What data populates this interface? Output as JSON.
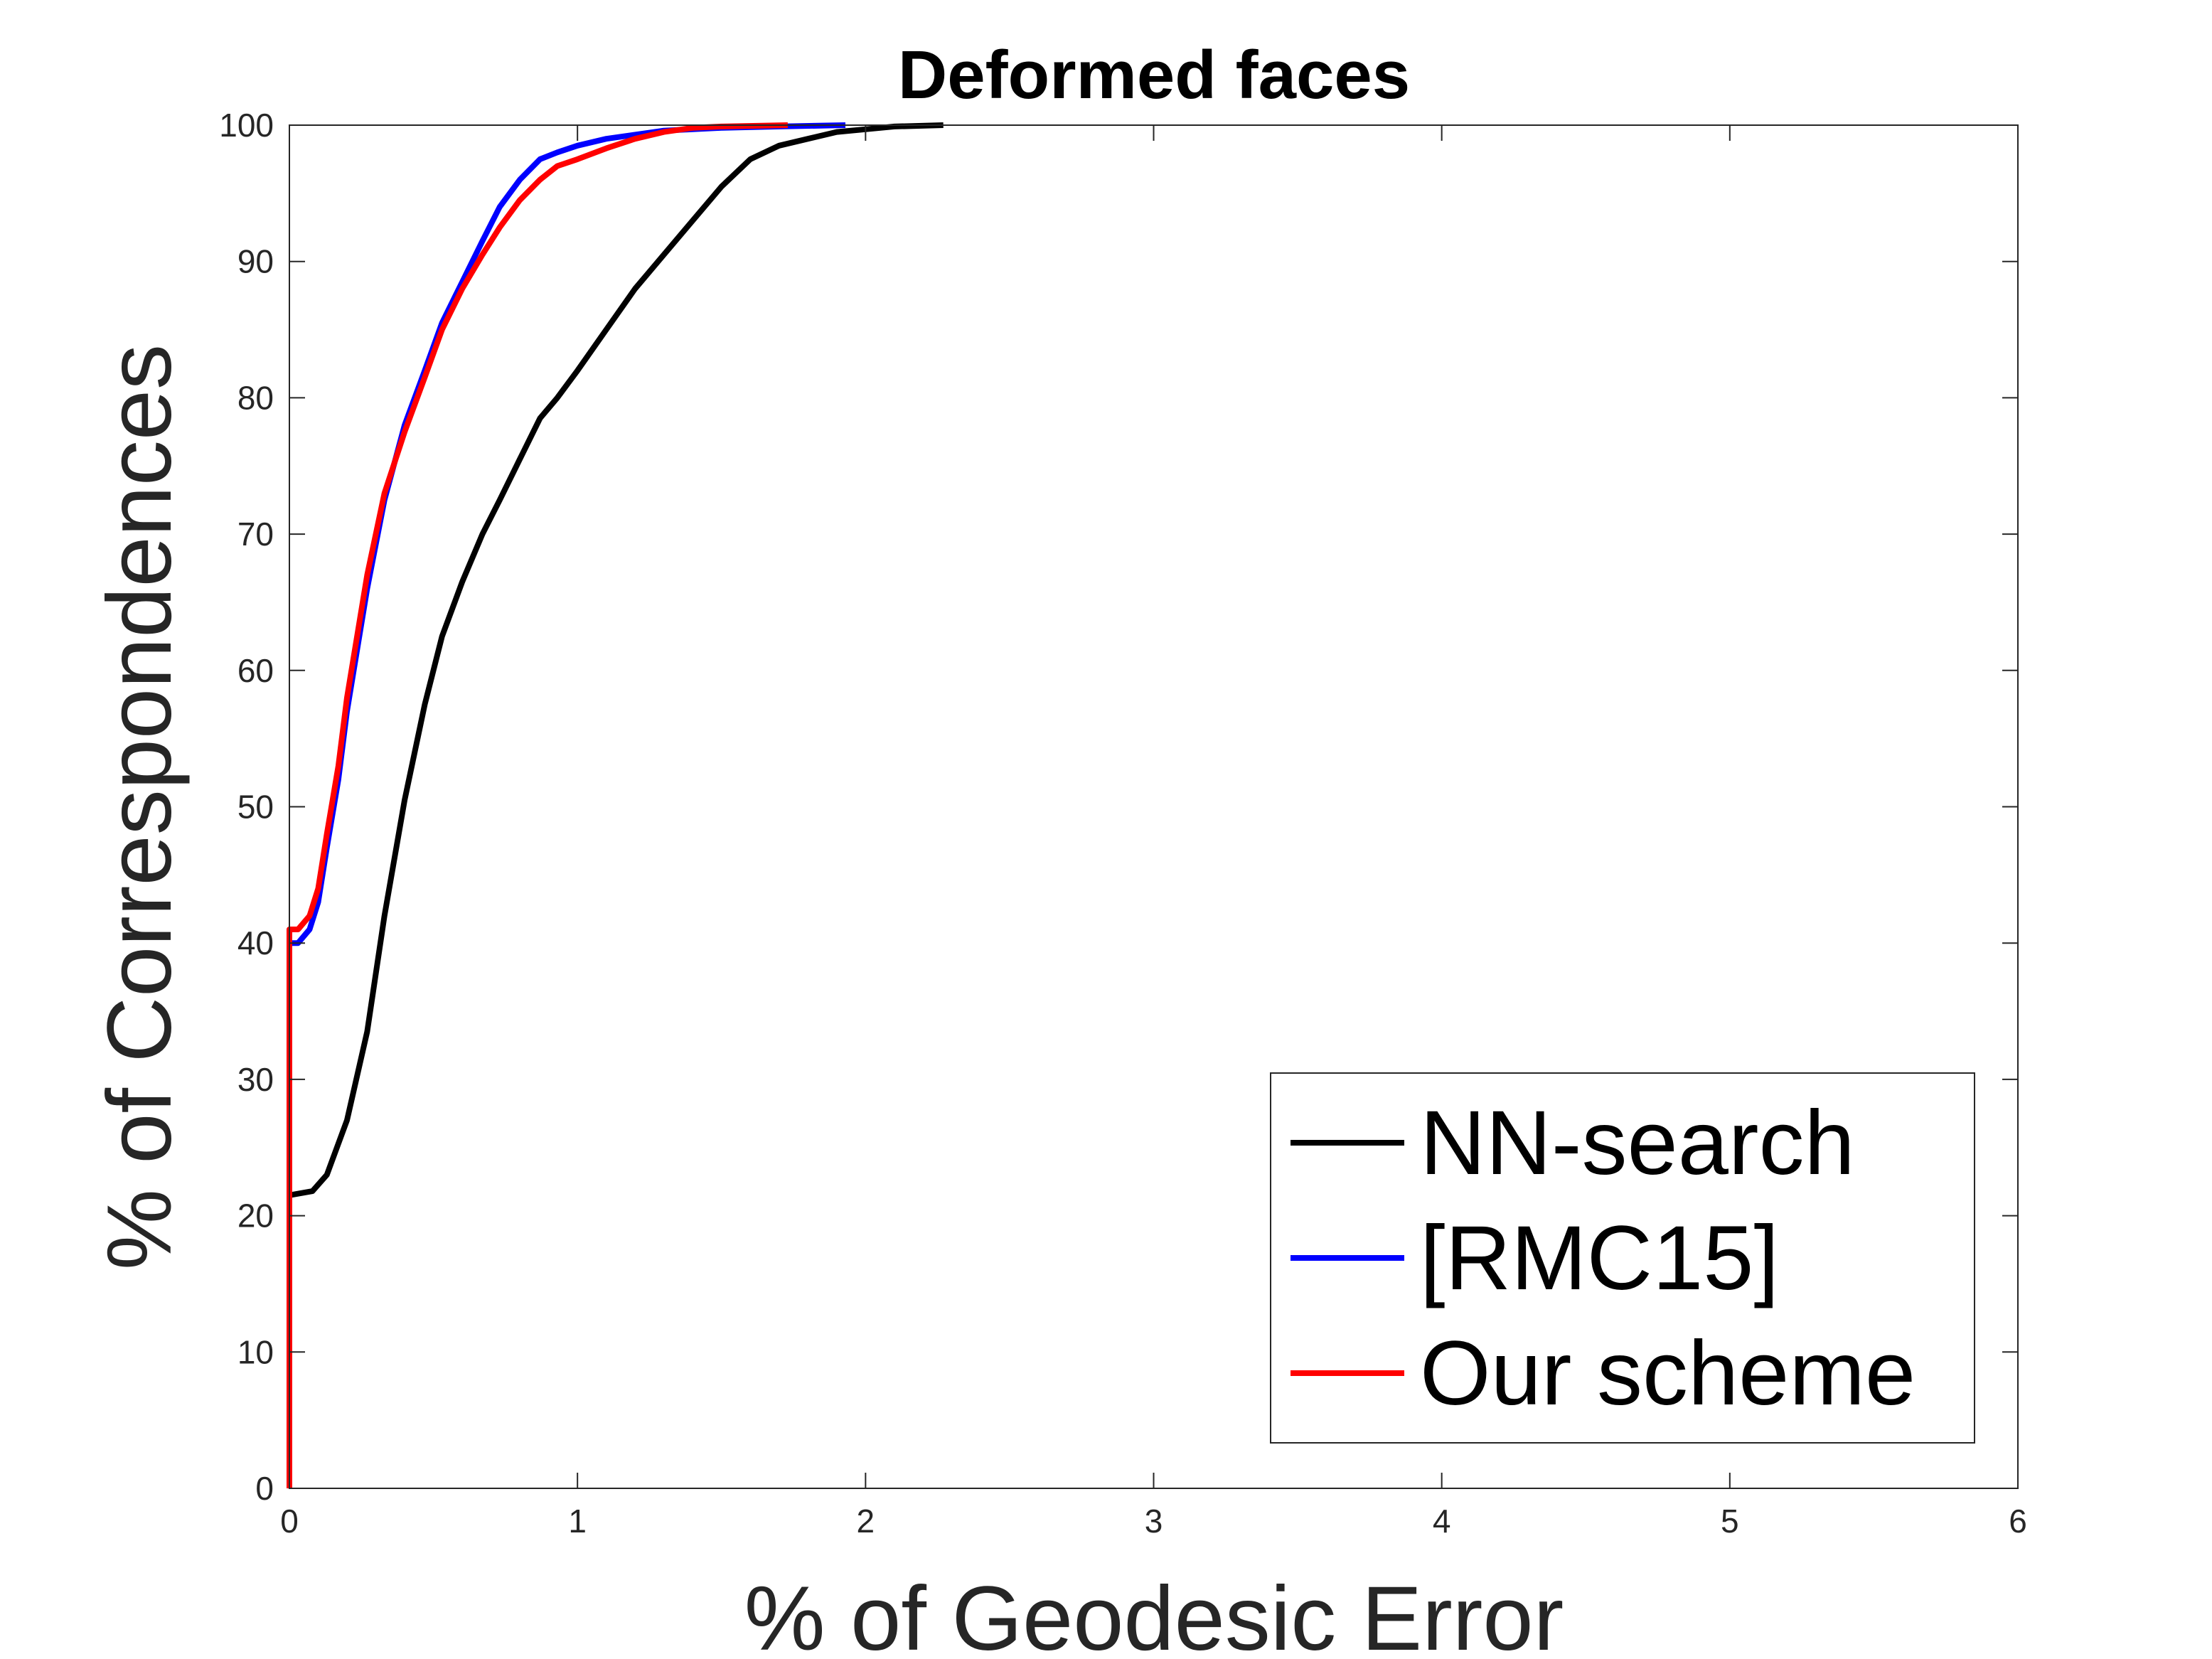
{
  "chart_data": {
    "type": "line",
    "title": "Deformed faces",
    "xlabel": "% of Geodesic Error",
    "ylabel": "% of Correspondences",
    "xlim": [
      0,
      6
    ],
    "ylim": [
      0,
      100
    ],
    "xticks": [
      0,
      1,
      2,
      3,
      4,
      5,
      6
    ],
    "yticks": [
      0,
      10,
      20,
      30,
      40,
      50,
      60,
      70,
      80,
      90,
      100
    ],
    "grid": false,
    "legend_position": "bottom-right",
    "series": [
      {
        "name": "NN-search",
        "color": "#000000",
        "x": [
          0,
          0,
          0.08,
          0.13,
          0.2,
          0.27,
          0.33,
          0.4,
          0.47,
          0.53,
          0.6,
          0.67,
          0.73,
          0.8,
          0.87,
          0.93,
          1.0,
          1.1,
          1.2,
          1.3,
          1.4,
          1.5,
          1.6,
          1.7,
          1.8,
          1.9,
          2.0,
          2.1,
          2.27
        ],
        "y": [
          0,
          21.5,
          21.8,
          23,
          27,
          33.5,
          42,
          50.5,
          57.5,
          62.5,
          66.5,
          70,
          72.5,
          75.5,
          78.5,
          80,
          82,
          85,
          88,
          90.5,
          93,
          95.5,
          97.5,
          98.5,
          99,
          99.5,
          99.7,
          99.9,
          100
        ]
      },
      {
        "name": "[RMC15]",
        "color": "#0000ff",
        "x": [
          0,
          0,
          0.03,
          0.07,
          0.1,
          0.13,
          0.17,
          0.2,
          0.27,
          0.33,
          0.4,
          0.47,
          0.53,
          0.6,
          0.67,
          0.73,
          0.8,
          0.87,
          0.93,
          1.0,
          1.1,
          1.2,
          1.3,
          1.4,
          1.5,
          1.7,
          1.93
        ],
        "y": [
          0,
          40,
          40,
          41,
          43,
          47,
          52,
          57,
          66,
          72.5,
          78,
          82,
          85.5,
          88.5,
          91.5,
          94,
          96,
          97.5,
          98,
          98.5,
          99,
          99.3,
          99.6,
          99.7,
          99.8,
          99.9,
          100
        ]
      },
      {
        "name": "Our scheme",
        "color": "#ff0000",
        "x": [
          0,
          0,
          0.03,
          0.07,
          0.1,
          0.13,
          0.17,
          0.2,
          0.27,
          0.33,
          0.4,
          0.47,
          0.53,
          0.6,
          0.67,
          0.73,
          0.8,
          0.87,
          0.93,
          1.0,
          1.1,
          1.2,
          1.3,
          1.4,
          1.5,
          1.73
        ],
        "y": [
          0,
          41,
          41,
          42,
          44,
          48,
          53,
          58,
          67,
          73,
          77.5,
          81.5,
          85,
          88,
          90.5,
          92.5,
          94.5,
          96,
          97,
          97.5,
          98.3,
          99,
          99.5,
          99.8,
          99.9,
          100
        ]
      }
    ]
  }
}
